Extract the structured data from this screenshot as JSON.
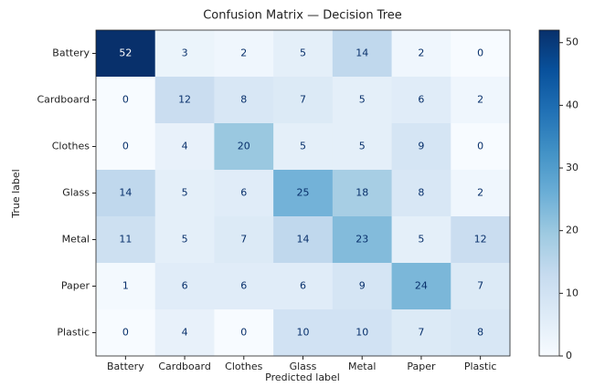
{
  "chart_data": {
    "type": "heatmap",
    "title": "Confusion Matrix — Decision Tree",
    "xlabel": "Predicted label",
    "ylabel": "True label",
    "x_categories": [
      "Battery",
      "Cardboard",
      "Clothes",
      "Glass",
      "Metal",
      "Paper",
      "Plastic"
    ],
    "y_categories": [
      "Battery",
      "Cardboard",
      "Clothes",
      "Glass",
      "Metal",
      "Paper",
      "Plastic"
    ],
    "matrix": [
      [
        52,
        3,
        2,
        5,
        14,
        2,
        0
      ],
      [
        0,
        12,
        8,
        7,
        5,
        6,
        2
      ],
      [
        0,
        4,
        20,
        5,
        5,
        9,
        0
      ],
      [
        14,
        5,
        6,
        25,
        18,
        8,
        2
      ],
      [
        11,
        5,
        7,
        14,
        23,
        5,
        12
      ],
      [
        1,
        6,
        6,
        6,
        9,
        24,
        7
      ],
      [
        0,
        4,
        0,
        10,
        10,
        7,
        8
      ]
    ],
    "colorscale": [
      "#f7fbff",
      "#deebf7",
      "#c6dbef",
      "#9ecae1",
      "#6baed6",
      "#4292c6",
      "#2171b5",
      "#08519c",
      "#08306b"
    ],
    "zlim": [
      0,
      52
    ],
    "zticks": [
      0,
      10,
      20,
      30,
      40,
      50
    ]
  }
}
